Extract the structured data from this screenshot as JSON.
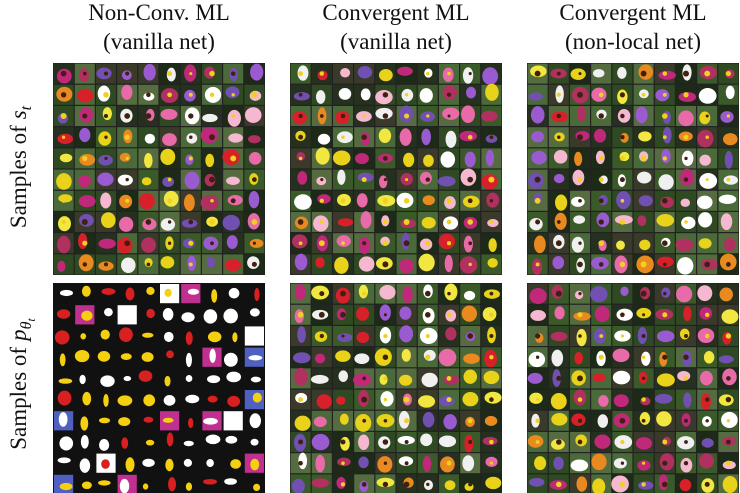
{
  "columns": [
    {
      "title_line1": "Non-Conv. ML",
      "title_line2": "(vanilla net)"
    },
    {
      "title_line1": "Convergent ML",
      "title_line2": "(vanilla net)"
    },
    {
      "title_line1": "Convergent ML",
      "title_line2": "(non-local net)"
    }
  ],
  "rows": [
    {
      "prefix": "Samples of",
      "math": "s",
      "sub": "t"
    },
    {
      "prefix": "Samples of",
      "math": "p",
      "sub": "θ",
      "subsub": "t"
    }
  ]
}
